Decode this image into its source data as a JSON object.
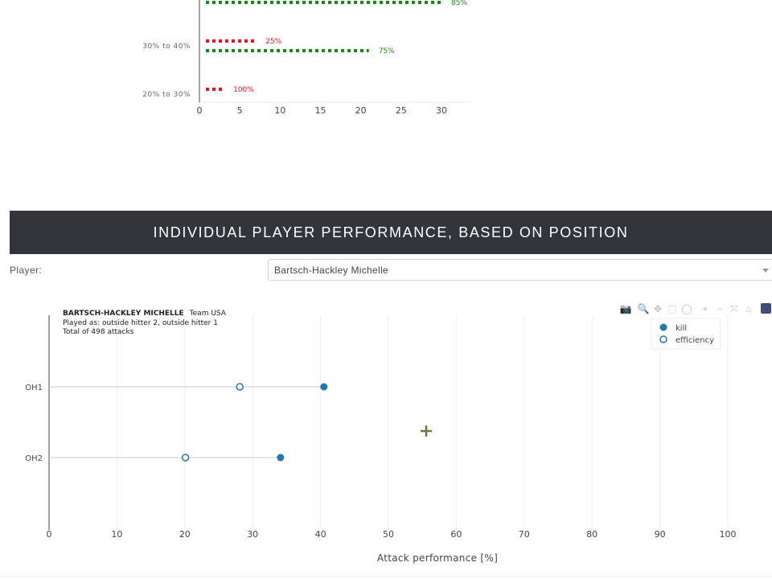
{
  "colors": {
    "banner_bg": "#32363b",
    "red": "#e8141d",
    "green": "#1a8a12",
    "kill": "#1f77b4",
    "efficiency_stroke": "#1f77b4",
    "cursor": "#6b7a3a"
  },
  "top_chart_data": {
    "type": "bar",
    "series": [
      {
        "name": "red",
        "color": "#e8141d"
      },
      {
        "name": "green",
        "color": "#1a8a12"
      }
    ],
    "rows": [
      {
        "category": "",
        "bars": [
          {
            "series": "green",
            "value": 30,
            "label": "85%"
          }
        ]
      },
      {
        "category": "30% to 40%",
        "bars": [
          {
            "series": "red",
            "value": 7,
            "label": "25%"
          },
          {
            "series": "green",
            "value": 21,
            "label": "75%"
          }
        ]
      },
      {
        "category": "20% to 30%",
        "bars": [
          {
            "series": "red",
            "value": 3,
            "label": "100%"
          }
        ]
      }
    ],
    "xlim": [
      0,
      34
    ],
    "xticks": [
      0,
      5,
      10,
      15,
      20,
      25,
      30
    ]
  },
  "banner": {
    "title": "INDIVIDUAL PLAYER PERFORMANCE, BASED ON POSITION"
  },
  "player": {
    "label": "Player:",
    "selected": "Bartsch-Hackley Michelle"
  },
  "modebar": {
    "icons": [
      "camera-icon",
      "zoom-icon",
      "pan-icon",
      "box-select-icon",
      "lasso-icon",
      "zoom-in-icon",
      "zoom-out-icon",
      "autoscale-icon",
      "reset-axes-icon",
      "plotly-logo-icon"
    ],
    "glyphs": [
      "📷",
      "🔍",
      "✥",
      "⬚",
      "◯",
      "+",
      "−",
      "⤧",
      "⌂",
      ""
    ]
  },
  "chart_data": {
    "type": "scatter",
    "annotation": {
      "name": "BARTSCH-HACKLEY MICHELLE",
      "team": "Team USA",
      "played_as": "Played as: outside hitter 2, outside hitter 1",
      "total": "Total of 498 attacks"
    },
    "categories": [
      "OH1",
      "OH2"
    ],
    "series": [
      {
        "name": "kill",
        "marker": "filled",
        "values": [
          40.5,
          34.1
        ]
      },
      {
        "name": "efficiency",
        "marker": "open",
        "values": [
          28.1,
          20.1
        ]
      }
    ],
    "xlim": [
      0,
      105
    ],
    "xticks": [
      0,
      10,
      20,
      30,
      40,
      50,
      60,
      70,
      80,
      90,
      100
    ],
    "xlabel": "Attack performance [%]",
    "legend": {
      "position": "top-right",
      "items": [
        "kill",
        "efficiency"
      ]
    },
    "grid": true
  }
}
